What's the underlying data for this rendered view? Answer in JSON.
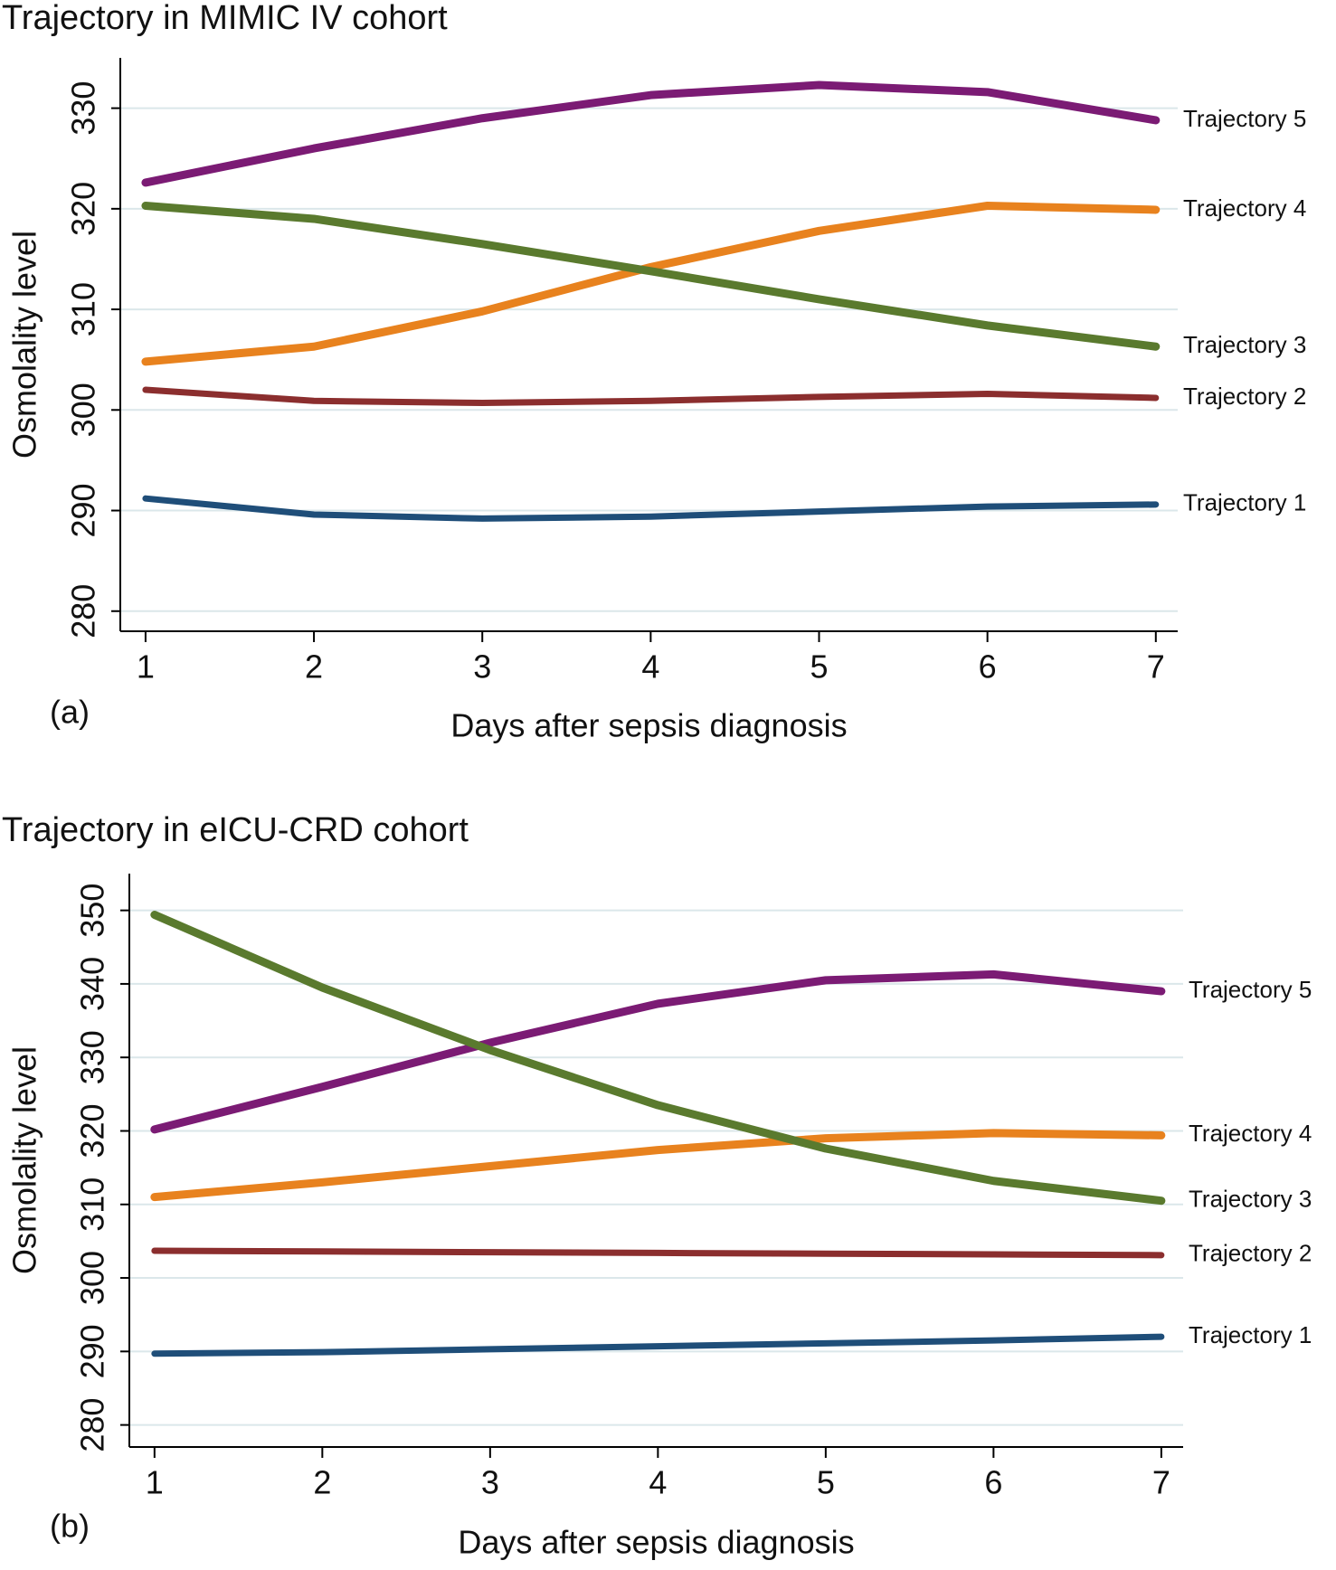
{
  "chart_data": [
    {
      "type": "line",
      "title": "Trajectory in MIMIC IV cohort",
      "panel_label": "(a)",
      "xlabel": "Days after sepsis diagnosis",
      "ylabel": "Osmolality level",
      "x": [
        1,
        2,
        3,
        4,
        5,
        6,
        7
      ],
      "series": [
        {
          "name": "Trajectory 5",
          "color": "#7b1b74",
          "values": [
            322.6,
            326,
            329,
            331.3,
            332.3,
            331.6,
            328.8
          ]
        },
        {
          "name": "Trajectory 4",
          "color": "#e8821e",
          "values": [
            304.8,
            306.3,
            309.8,
            314.2,
            317.8,
            320.3,
            319.9
          ]
        },
        {
          "name": "Trajectory 3",
          "color": "#5a7a2e",
          "values": [
            320.3,
            319,
            316.5,
            313.8,
            311,
            308.4,
            306.3
          ]
        },
        {
          "name": "Trajectory 2",
          "color": "#8b2e2e",
          "values": [
            302,
            300.9,
            300.7,
            300.9,
            301.3,
            301.6,
            301.2
          ]
        },
        {
          "name": "Trajectory 1",
          "color": "#1f4e79",
          "values": [
            291.2,
            289.6,
            289.2,
            289.4,
            289.9,
            290.4,
            290.6
          ]
        }
      ],
      "xlim": [
        0.85,
        7.13
      ],
      "ylim": [
        278,
        335
      ],
      "xticks": [
        1,
        2,
        3,
        4,
        5,
        6,
        7
      ],
      "yticks": [
        280,
        290,
        300,
        310,
        320,
        330
      ],
      "grid": true
    },
    {
      "type": "line",
      "title": "Trajectory in eICU-CRD cohort",
      "panel_label": "(b)",
      "xlabel": "Days after sepsis diagnosis",
      "ylabel": "Osmolality level",
      "x": [
        1,
        2,
        3,
        4,
        5,
        6,
        7
      ],
      "series": [
        {
          "name": "Trajectory 5",
          "color": "#7b1b74",
          "values": [
            320.2,
            326,
            332,
            337.3,
            340.5,
            341.3,
            339
          ]
        },
        {
          "name": "Trajectory 4",
          "color": "#e8821e",
          "values": [
            311,
            313,
            315.2,
            317.4,
            319,
            319.7,
            319.4
          ]
        },
        {
          "name": "Trajectory 3",
          "color": "#5a7a2e",
          "values": [
            349.4,
            339.5,
            331,
            323.5,
            317.6,
            313.2,
            310.5
          ]
        },
        {
          "name": "Trajectory 2",
          "color": "#8b2e2e",
          "values": [
            303.7,
            303.6,
            303.5,
            303.4,
            303.3,
            303.2,
            303.1
          ]
        },
        {
          "name": "Trajectory 1",
          "color": "#1f4e79",
          "values": [
            289.7,
            289.9,
            290.3,
            290.7,
            291.1,
            291.5,
            292
          ]
        }
      ],
      "xlim": [
        0.85,
        7.13
      ],
      "ylim": [
        277,
        355
      ],
      "xticks": [
        1,
        2,
        3,
        4,
        5,
        6,
        7
      ],
      "yticks": [
        280,
        290,
        300,
        310,
        320,
        330,
        340,
        350
      ],
      "grid": true
    }
  ]
}
